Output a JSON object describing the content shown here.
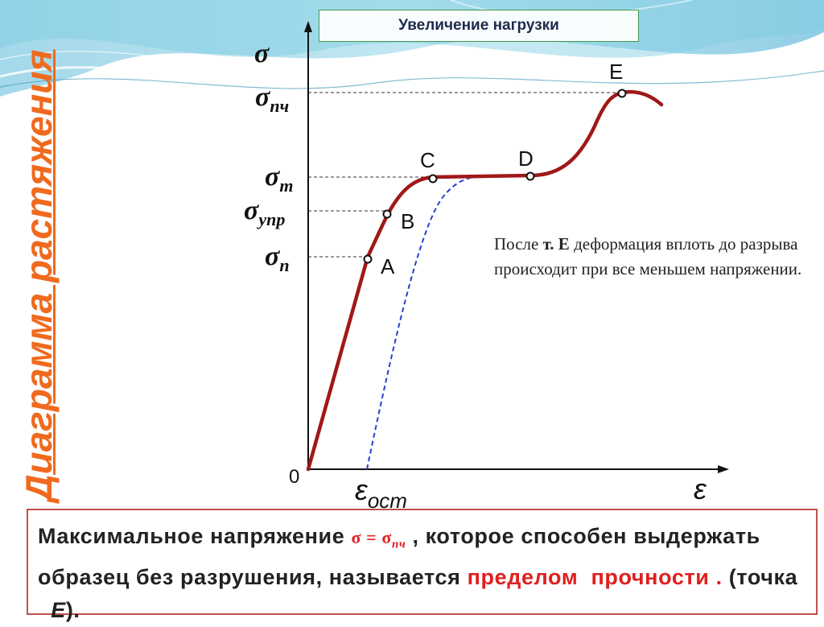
{
  "vertical_title": "Диаграмма растяжения",
  "top_label": "Увеличение нагрузки",
  "axis": {
    "sigma": "σ",
    "origin": "0",
    "epsilon": "ε",
    "eps_ost_main": "ε",
    "eps_ost_sub": "ост"
  },
  "sigma_labels": {
    "pch": {
      "main": "σ",
      "sub": "пч"
    },
    "t": {
      "main": "σ",
      "sub": "т"
    },
    "upr": {
      "main": "σ",
      "sub": "упр"
    },
    "p": {
      "main": "σ",
      "sub": "п"
    }
  },
  "points": {
    "A": "A",
    "B": "B",
    "C": "C",
    "D": "D",
    "E": "E"
  },
  "note": {
    "part1": "После ",
    "bold": "т. Е",
    "part2": " деформация вплоть до разрыва происходит при все меньшем напряжении."
  },
  "bottom": {
    "t1": "Максимальное  напряжение ",
    "sigma_main": "σ = σ",
    "sigma_sub": "пч",
    "t2": " ,  которое способен выдержать образец без разрушения, называется ",
    "red1": "пределом",
    "red2": "прочности .",
    "t3": " (точка ",
    "pointE": "Е",
    "t4": ")."
  },
  "colors": {
    "curve": "#a01818",
    "dashed": "#2a3fd0",
    "accent_title": "#f06a1e",
    "box_border": "#c0504d",
    "red_text": "#e02020"
  }
}
